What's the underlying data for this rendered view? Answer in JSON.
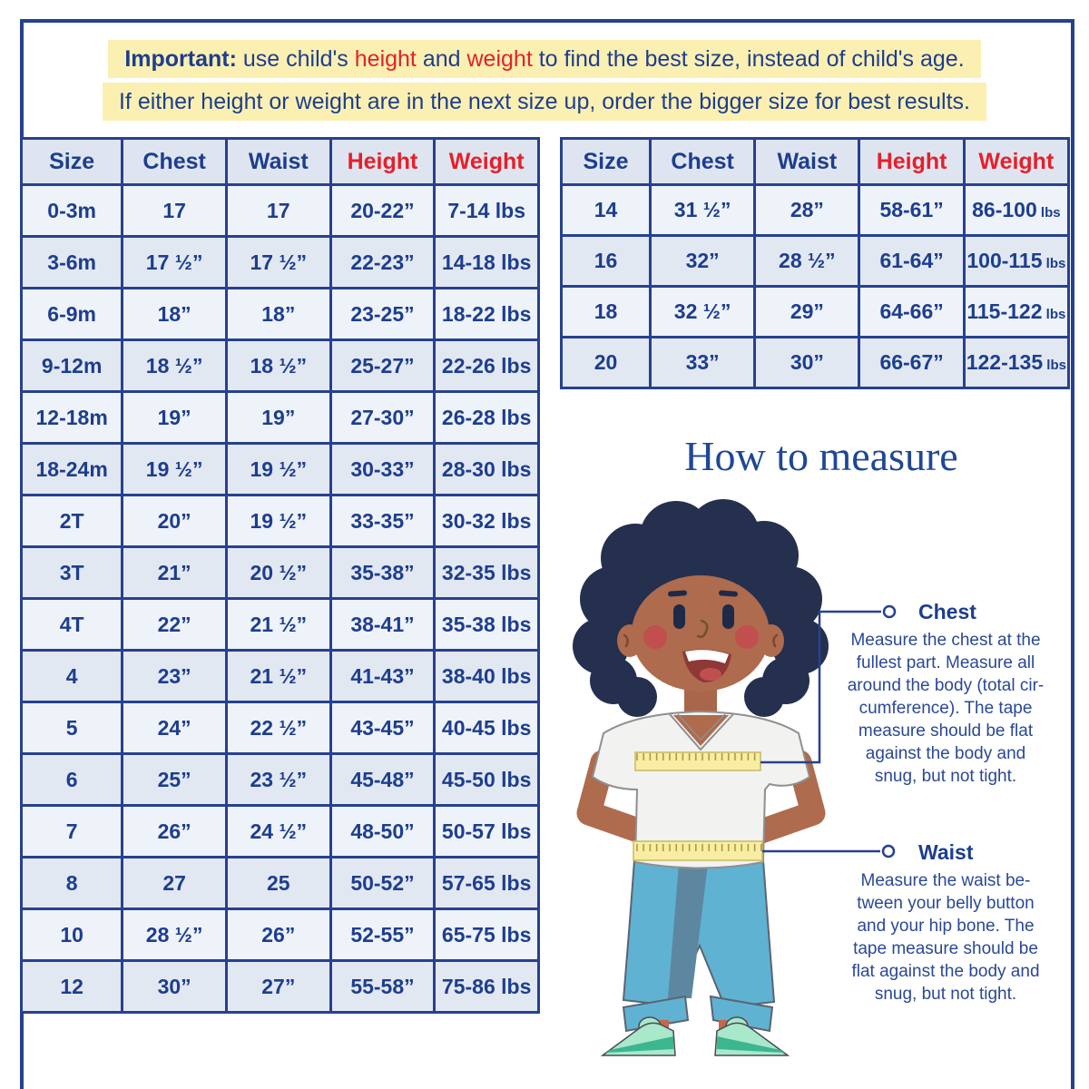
{
  "colors": {
    "navy_text": "#1d3e8e",
    "red_accent": "#e5202a",
    "table_border": "#26418f",
    "highlight_yellow": "#fbf0b2",
    "row_light": "#eef2f9",
    "row_dark": "#e2e8f2",
    "header_bg": "#dfe5f0",
    "illustration": {
      "hair": "#252f4e",
      "skin": "#ae6b4e",
      "cheeks": "#c14f4e",
      "shirt": "#f2f2f0",
      "tape": "#f8eda2",
      "pants": "#5fb2d2",
      "shoes": "#3bb68e"
    }
  },
  "banner": {
    "important": "Important:",
    "seg1": " use child's ",
    "word_height": "height",
    "seg2": " and ",
    "word_weight": "weight",
    "seg3": " to find the best size, instead of child's age.",
    "line2": "If either height or weight are in the next size up, order the bigger size for best results."
  },
  "size_chart_left": {
    "headers": [
      "Size",
      "Chest",
      "Waist",
      "Height",
      "Weight"
    ],
    "rows": [
      [
        "0-3m",
        "17",
        "17",
        "20-22”",
        "7-14 lbs"
      ],
      [
        "3-6m",
        "17 ½”",
        "17 ½”",
        "22-23”",
        "14-18 lbs"
      ],
      [
        "6-9m",
        "18”",
        "18”",
        "23-25”",
        "18-22 lbs"
      ],
      [
        "9-12m",
        "18 ½”",
        "18 ½”",
        "25-27”",
        "22-26 lbs"
      ],
      [
        "12-18m",
        "19”",
        "19”",
        "27-30”",
        "26-28 lbs"
      ],
      [
        "18-24m",
        "19 ½”",
        "19 ½”",
        "30-33”",
        "28-30 lbs"
      ],
      [
        "2T",
        "20”",
        "19 ½”",
        "33-35”",
        "30-32 lbs"
      ],
      [
        "3T",
        "21”",
        "20 ½”",
        "35-38”",
        "32-35 lbs"
      ],
      [
        "4T",
        "22”",
        "21 ½”",
        "38-41”",
        "35-38 lbs"
      ],
      [
        "4",
        "23”",
        "21 ½”",
        "41-43”",
        "38-40 lbs"
      ],
      [
        "5",
        "24”",
        "22 ½”",
        "43-45”",
        "40-45 lbs"
      ],
      [
        "6",
        "25”",
        "23 ½”",
        "45-48”",
        "45-50 lbs"
      ],
      [
        "7",
        "26”",
        "24 ½”",
        "48-50”",
        "50-57 lbs"
      ],
      [
        "8",
        "27",
        "25",
        "50-52”",
        "57-65 lbs"
      ],
      [
        "10",
        "28 ½”",
        "26”",
        "52-55”",
        "65-75 lbs"
      ],
      [
        "12",
        "30”",
        "27”",
        "55-58”",
        "75-86 lbs"
      ]
    ]
  },
  "size_chart_right": {
    "headers": [
      "Size",
      "Chest",
      "Waist",
      "Height",
      "Weight"
    ],
    "rows": [
      [
        "14",
        "31 ½”",
        "28”",
        "58-61”",
        {
          "main": "86-100",
          "unit": "lbs"
        }
      ],
      [
        "16",
        "32”",
        "28 ½”",
        "61-64”",
        {
          "main": "100-115",
          "unit": "lbs"
        }
      ],
      [
        "18",
        "32 ½”",
        "29”",
        "64-66”",
        {
          "main": "115-122",
          "unit": "lbs"
        }
      ],
      [
        "20",
        "33”",
        "30”",
        "66-67”",
        {
          "main": "122-135",
          "unit": "lbs"
        }
      ]
    ]
  },
  "how_to_measure": {
    "title": "How to measure",
    "chest": {
      "label": "Chest",
      "text": "Measure the chest at the\nfullest part. Measure all\naround the body (total cir-\ncumference). The tape\nmeasure should be flat\nagainst the body and\nsnug, but not tight."
    },
    "waist": {
      "label": "Waist",
      "text": "Measure the waist be-\ntween your belly button\nand your hip bone. The\ntape measure should be\nflat against the body and\nsnug, but not tight."
    }
  },
  "illustration": {
    "name": "child-with-measuring-tapes"
  }
}
